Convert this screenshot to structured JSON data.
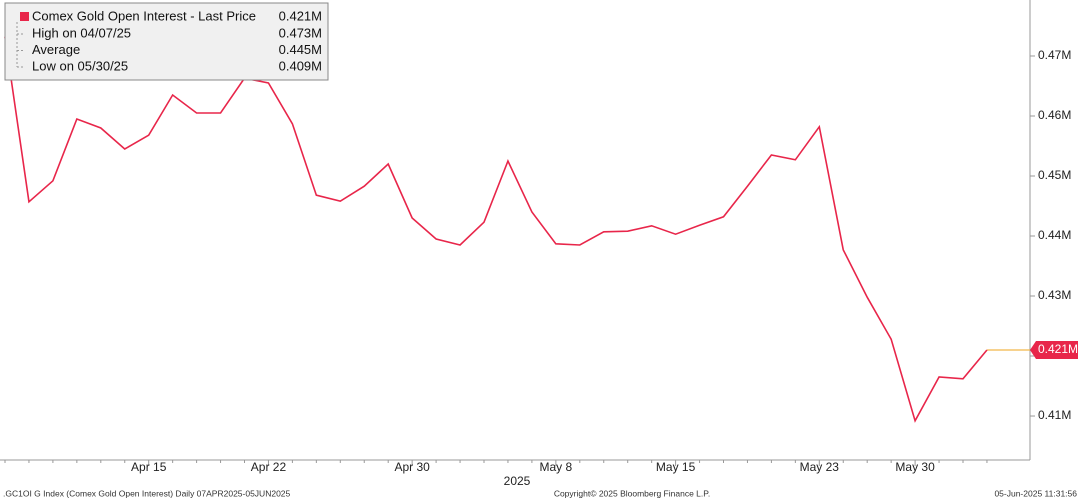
{
  "chart_data": {
    "type": "line",
    "title": "Comex Gold Open Interest - Last Price",
    "x_axis_label": "2025",
    "categories": [
      null,
      null,
      null,
      null,
      null,
      null,
      "Apr 15",
      null,
      null,
      null,
      null,
      "Apr 22",
      null,
      null,
      null,
      null,
      null,
      "Apr 30",
      null,
      null,
      null,
      null,
      null,
      "May 8",
      null,
      null,
      null,
      null,
      "May 15",
      null,
      null,
      null,
      null,
      null,
      "May 23",
      null,
      null,
      null,
      "May 30",
      null,
      null,
      null
    ],
    "series": [
      {
        "name": "Comex Gold Open Interest - Last Price",
        "color": "#e8264a",
        "values": [
          0.4732,
          0.4457,
          0.4492,
          0.4595,
          0.458,
          0.4545,
          0.4568,
          0.4635,
          0.4605,
          0.4605,
          0.4663,
          0.4655,
          0.4587,
          0.4468,
          0.4458,
          0.4483,
          0.452,
          0.443,
          0.4395,
          0.4385,
          0.4423,
          0.4525,
          0.444,
          0.4387,
          0.4385,
          0.4407,
          0.4408,
          0.4417,
          0.4403,
          0.4418,
          0.4432,
          0.4483,
          0.4535,
          0.4527,
          0.4582,
          0.4377,
          0.4298,
          0.4228,
          0.4092,
          0.4165,
          0.4162,
          0.421
        ]
      }
    ],
    "ylim": [
      0.40267,
      0.47933
    ],
    "yticks": [
      {
        "value": 0.41,
        "label": "0.41M"
      },
      {
        "value": 0.42,
        "label": "0.42M"
      },
      {
        "value": 0.43,
        "label": "0.43M"
      },
      {
        "value": 0.44,
        "label": "0.44M"
      },
      {
        "value": 0.45,
        "label": "0.45M"
      },
      {
        "value": 0.46,
        "label": "0.46M"
      },
      {
        "value": 0.47,
        "label": "0.47M"
      }
    ],
    "grid": false,
    "legend_position": "upper left",
    "last_price": {
      "value": 0.421,
      "label": "0.421M"
    },
    "legend_stats": [
      {
        "name": "High on 04/07/25",
        "value": 0.473,
        "label": "0.473M"
      },
      {
        "name": "Average",
        "value": 0.445,
        "label": "0.445M"
      },
      {
        "name": "Low on 05/30/25",
        "value": 0.409,
        "label": "0.409M"
      }
    ],
    "footer": {
      "left": ".GC1OI G Index (Comex Gold Open Interest)  Daily 07APR2025-05JUN2025",
      "center": "Copyright© 2025 Bloomberg Finance L.P.",
      "right": "05-Jun-2025 11:31:56"
    }
  }
}
